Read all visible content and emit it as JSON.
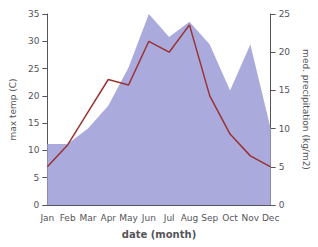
{
  "chart_data": {
    "type": "line",
    "categories": [
      "Jan",
      "Feb",
      "Mar",
      "Apr",
      "May",
      "Jun",
      "Jul",
      "Aug",
      "Sep",
      "Oct",
      "Nov",
      "Dec"
    ],
    "xlabel": "date (month)",
    "ylabel": "max temp (C)",
    "y2label": "med. precipitation (kg/m2)",
    "series": [
      {
        "type": "area",
        "color": "#aaaadd",
        "axis": "y2",
        "values": [
          8,
          8,
          10,
          13,
          18,
          25,
          22,
          24,
          21,
          15,
          21,
          10
        ]
      },
      {
        "type": "line",
        "color": "#993333",
        "values": [
          7,
          11,
          17,
          23,
          22,
          30,
          28,
          33,
          20,
          13,
          9,
          7
        ]
      }
    ],
    "ylim": [
      0,
      35
    ],
    "yticks": [
      0,
      5,
      10,
      15,
      20,
      25,
      30,
      35
    ],
    "y2lim": [
      0,
      25
    ],
    "y2ticks": [
      0,
      5,
      10,
      15,
      20,
      25
    ],
    "grid": false
  }
}
